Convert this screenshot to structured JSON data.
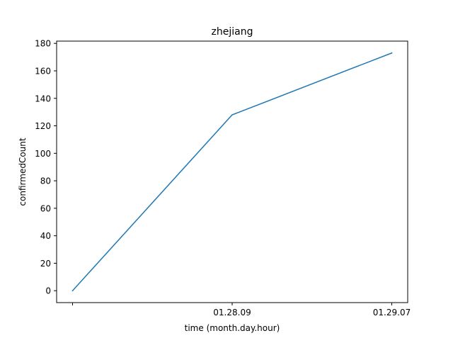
{
  "chart_data": {
    "type": "line",
    "title": "zhejiang",
    "xlabel": "time (month.day.hour)",
    "ylabel": "confirmedCount",
    "x_tick_labels": [
      "",
      "01.28.09",
      "01.29.07"
    ],
    "series": [
      {
        "values": [
          0,
          128,
          173
        ],
        "color": "#1f77b4"
      }
    ],
    "yticks": [
      0,
      20,
      40,
      60,
      80,
      100,
      120,
      140,
      160,
      180
    ],
    "ylim": [
      -8.65,
      181.65
    ],
    "grid": false,
    "legend": "none"
  }
}
